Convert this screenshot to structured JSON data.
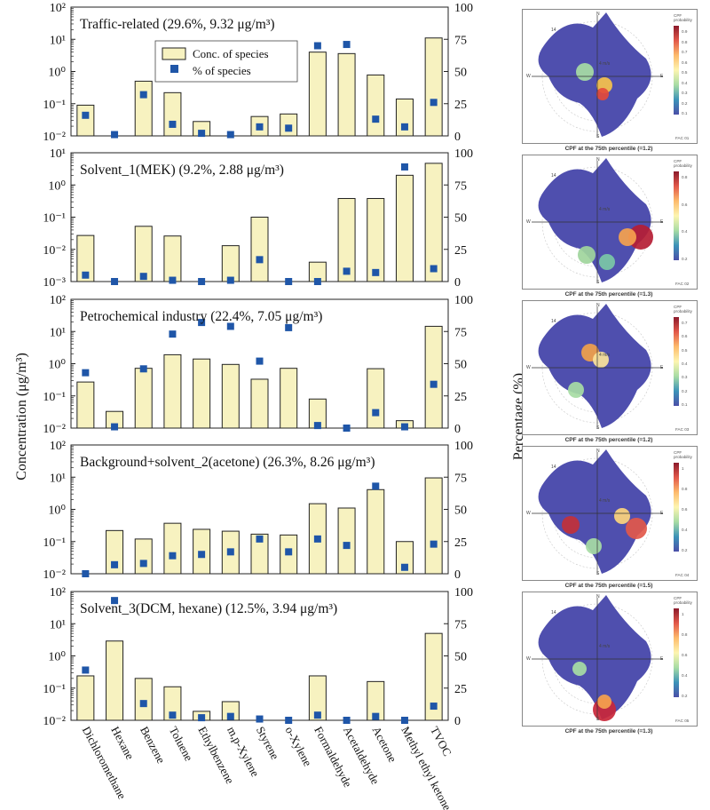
{
  "y_axis_left_label": "Concentration (μg/m³)",
  "y_axis_right_label": "Percentage (%)",
  "legend": {
    "conc_label": "Conc. of species",
    "pct_label": "% of species"
  },
  "colors": {
    "bar_fill": "#f7f2c0",
    "bar_stroke": "#222222",
    "marker": "#1f56a8"
  },
  "chart_data": [
    {
      "type": "bar",
      "title": "Traffic-related (29.6%, 9.32 μg/m³)",
      "categories": [
        "Dichloromethane",
        "Hexane",
        "Benzene",
        "Toluene",
        "Ethylbenzene",
        "m,p-Xylene",
        "Styrene",
        "o-Xylene",
        "Formaldehyde",
        "Acetaldehyde",
        "Acetone",
        "Methyl ethyl ketone",
        "TVOC"
      ],
      "ylim_log": [
        0.01,
        100
      ],
      "y_ticks": [
        "10⁻²",
        "10⁻¹",
        "10⁰",
        "10¹",
        "10²"
      ],
      "y2lim": [
        0,
        100
      ],
      "y2_ticks": [
        "0",
        "25",
        "50",
        "75",
        "100"
      ],
      "series": [
        {
          "name": "Conc. of species",
          "kind": "bar",
          "values": [
            0.09,
            null,
            0.5,
            0.22,
            0.028,
            null,
            0.04,
            0.048,
            4.0,
            3.6,
            0.78,
            0.14,
            11
          ]
        },
        {
          "name": "% of species",
          "kind": "marker",
          "values": [
            16,
            1,
            32,
            9,
            2,
            1,
            7,
            6,
            70,
            71,
            13,
            7,
            26
          ]
        }
      ]
    },
    {
      "type": "bar",
      "title": "Solvent_1(MEK) (9.2%, 2.88 μg/m³)",
      "categories": [
        "Dichloromethane",
        "Hexane",
        "Benzene",
        "Toluene",
        "Ethylbenzene",
        "m,p-Xylene",
        "Styrene",
        "o-Xylene",
        "Formaldehyde",
        "Acetaldehyde",
        "Acetone",
        "Methyl ethyl ketone",
        "TVOC"
      ],
      "ylim_log": [
        0.001,
        10
      ],
      "y_ticks": [
        "10⁻³",
        "10⁻²",
        "10⁻¹",
        "10⁰",
        "10¹"
      ],
      "y2lim": [
        0,
        100
      ],
      "y2_ticks": [
        "0",
        "25",
        "50",
        "75",
        "100"
      ],
      "series": [
        {
          "name": "Conc. of species",
          "kind": "bar",
          "values": [
            0.027,
            null,
            0.052,
            0.026,
            null,
            0.013,
            0.1,
            null,
            0.004,
            0.38,
            0.38,
            2.0,
            4.7
          ]
        },
        {
          "name": "% of species",
          "kind": "marker",
          "values": [
            5,
            0,
            4,
            1,
            0,
            1,
            17,
            0,
            0,
            8,
            7,
            89,
            10
          ]
        }
      ]
    },
    {
      "type": "bar",
      "title": "Petrochemical industry (22.4%, 7.05 μg/m³)",
      "categories": [
        "Dichloromethane",
        "Hexane",
        "Benzene",
        "Toluene",
        "Ethylbenzene",
        "m,p-Xylene",
        "Styrene",
        "o-Xylene",
        "Formaldehyde",
        "Acetaldehyde",
        "Acetone",
        "Methyl ethyl ketone",
        "TVOC"
      ],
      "ylim_log": [
        0.01,
        100
      ],
      "y_ticks": [
        "10⁻²",
        "10⁻¹",
        "10⁰",
        "10¹",
        "10²"
      ],
      "y2lim": [
        0,
        100
      ],
      "y2_ticks": [
        "0",
        "25",
        "50",
        "75",
        "100"
      ],
      "series": [
        {
          "name": "Conc. of species",
          "kind": "bar",
          "values": [
            0.27,
            0.033,
            0.72,
            1.9,
            1.4,
            0.95,
            0.33,
            0.72,
            0.08,
            null,
            0.7,
            0.017,
            14.5
          ]
        },
        {
          "name": "% of species",
          "kind": "marker",
          "values": [
            43,
            1,
            46,
            73,
            82,
            79,
            52,
            78,
            2,
            0,
            12,
            1,
            34
          ]
        }
      ]
    },
    {
      "type": "bar",
      "title": "Background+solvent_2(acetone) (26.3%, 8.26 μg/m³)",
      "categories": [
        "Dichloromethane",
        "Hexane",
        "Benzene",
        "Toluene",
        "Ethylbenzene",
        "m,p-Xylene",
        "Styrene",
        "o-Xylene",
        "Formaldehyde",
        "Acetaldehyde",
        "Acetone",
        "Methyl ethyl ketone",
        "TVOC"
      ],
      "ylim_log": [
        0.01,
        100
      ],
      "y_ticks": [
        "10⁻²",
        "10⁻¹",
        "10⁰",
        "10¹",
        "10²"
      ],
      "y2lim": [
        0,
        100
      ],
      "y2_ticks": [
        "0",
        "25",
        "50",
        "75",
        "100"
      ],
      "series": [
        {
          "name": "Conc. of species",
          "kind": "bar",
          "values": [
            null,
            0.22,
            0.12,
            0.37,
            0.24,
            0.21,
            0.17,
            0.16,
            1.5,
            1.1,
            4.1,
            0.1,
            9.5
          ]
        },
        {
          "name": "% of species",
          "kind": "marker",
          "values": [
            0,
            7,
            8,
            14,
            15,
            17,
            27,
            17,
            27,
            22,
            68,
            5,
            23
          ]
        }
      ]
    },
    {
      "type": "bar",
      "title": "Solvent_3(DCM, hexane) (12.5%, 3.94 μg/m³)",
      "categories": [
        "Dichloromethane",
        "Hexane",
        "Benzene",
        "Toluene",
        "Ethylbenzene",
        "m,p-Xylene",
        "Styrene",
        "o-Xylene",
        "Formaldehyde",
        "Acetaldehyde",
        "Acetone",
        "Methyl ethyl ketone",
        "TVOC"
      ],
      "ylim_log": [
        0.01,
        100
      ],
      "y_ticks": [
        "10⁻²",
        "10⁻¹",
        "10⁰",
        "10¹",
        "10²"
      ],
      "y2lim": [
        0,
        100
      ],
      "y2_ticks": [
        "0",
        "25",
        "50",
        "75",
        "100"
      ],
      "series": [
        {
          "name": "Conc. of species",
          "kind": "bar",
          "values": [
            0.24,
            2.9,
            0.2,
            0.11,
            0.019,
            0.038,
            null,
            null,
            0.24,
            null,
            0.16,
            null,
            5.0
          ]
        },
        {
          "name": "% of species",
          "kind": "marker",
          "values": [
            39,
            93,
            13,
            4,
            2,
            3,
            1,
            0,
            4,
            0,
            3,
            0,
            11
          ]
        }
      ]
    }
  ],
  "cpf_panels": [
    {
      "caption": "CPF at the 75th percentile (=1.2)",
      "factor": "FAC 01",
      "cb_title": "CPF probability",
      "cb_ticks": [
        "0.9",
        "0.8",
        "0.7",
        "0.6",
        "0.5",
        "0.4",
        "0.3",
        "0.2",
        "0.1"
      ]
    },
    {
      "caption": "CPF at the 75th percentile (=1.3)",
      "factor": "FAC 02",
      "cb_title": "CPF probability",
      "cb_ticks": [
        "0.8",
        "0.6",
        "0.4",
        "0.2"
      ]
    },
    {
      "caption": "CPF at the 75th percentile (=1.2)",
      "factor": "FAC 03",
      "cb_title": "CPF probability",
      "cb_ticks": [
        "0.7",
        "0.6",
        "0.5",
        "0.4",
        "0.3",
        "0.2",
        "0.1"
      ]
    },
    {
      "caption": "CPF at the 75th percentile (=1.5)",
      "factor": "FAC 04",
      "cb_title": "CPF probability",
      "cb_ticks": [
        "1",
        "0.8",
        "0.6",
        "0.4",
        "0.2"
      ]
    },
    {
      "caption": "CPF at the 75th percentile (=1.3)",
      "factor": "FAC 05",
      "cb_title": "CPF probability",
      "cb_ticks": [
        "1",
        "0.8",
        "0.6",
        "0.4",
        "0.2"
      ]
    }
  ],
  "compass": {
    "n": "N",
    "s": "S",
    "e": "E",
    "w": "W",
    "speed_label": "14",
    "ring_label": "4 m/s"
  }
}
